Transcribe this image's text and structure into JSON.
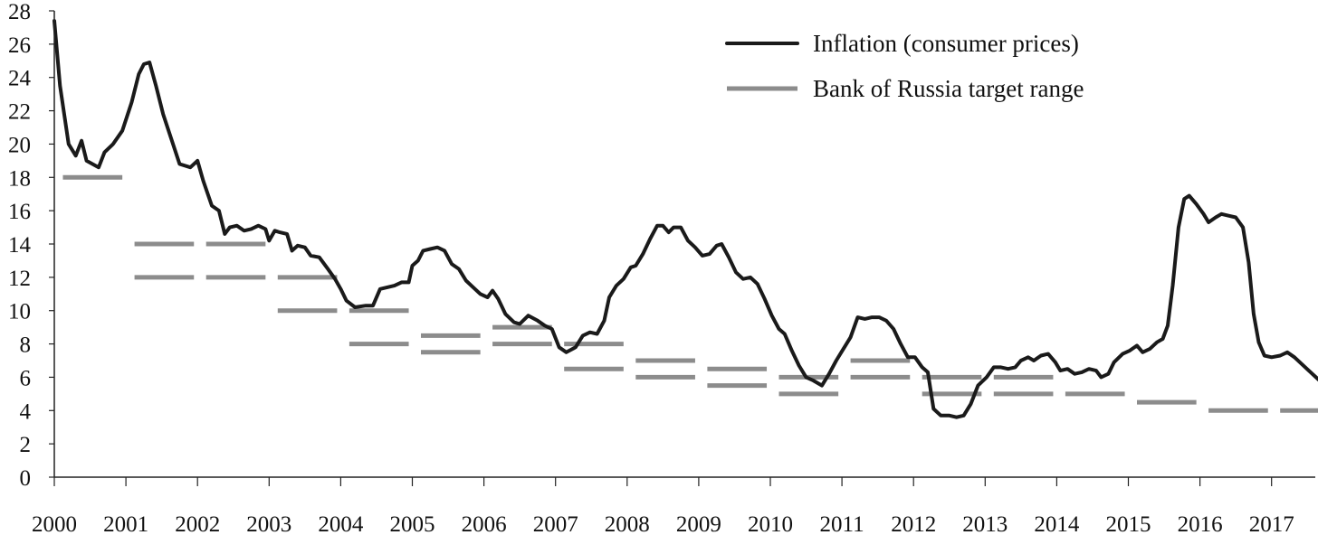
{
  "chart_data": {
    "type": "line",
    "title": "",
    "xlabel": "",
    "ylabel": "",
    "xlim": [
      2000,
      2017.75
    ],
    "ylim": [
      0,
      28
    ],
    "x_ticks": [
      2000,
      2001,
      2002,
      2003,
      2004,
      2005,
      2006,
      2007,
      2008,
      2009,
      2010,
      2011,
      2012,
      2013,
      2014,
      2015,
      2016,
      2017
    ],
    "y_ticks": [
      0,
      2,
      4,
      6,
      8,
      10,
      12,
      14,
      16,
      18,
      20,
      22,
      24,
      26,
      28
    ],
    "grid": false,
    "legend_position": "top-right",
    "colors": {
      "inflation": "#1a1a1a",
      "target": "#8c8c8c"
    },
    "series": [
      {
        "name": "Inflation (consumer prices)",
        "kind": "line",
        "points": [
          [
            2000.0,
            27.4
          ],
          [
            2000.08,
            23.5
          ],
          [
            2000.2,
            20.0
          ],
          [
            2000.3,
            19.3
          ],
          [
            2000.38,
            20.2
          ],
          [
            2000.45,
            19.0
          ],
          [
            2000.62,
            18.6
          ],
          [
            2000.7,
            19.5
          ],
          [
            2000.82,
            20.0
          ],
          [
            2000.95,
            20.8
          ],
          [
            2001.08,
            22.5
          ],
          [
            2001.18,
            24.2
          ],
          [
            2001.25,
            24.8
          ],
          [
            2001.33,
            24.9
          ],
          [
            2001.42,
            23.5
          ],
          [
            2001.52,
            21.8
          ],
          [
            2001.62,
            20.5
          ],
          [
            2001.75,
            18.8
          ],
          [
            2001.9,
            18.6
          ],
          [
            2002.0,
            19.0
          ],
          [
            2002.08,
            17.8
          ],
          [
            2002.2,
            16.3
          ],
          [
            2002.3,
            16.0
          ],
          [
            2002.38,
            14.6
          ],
          [
            2002.45,
            15.0
          ],
          [
            2002.55,
            15.1
          ],
          [
            2002.65,
            14.8
          ],
          [
            2002.75,
            14.9
          ],
          [
            2002.85,
            15.1
          ],
          [
            2002.95,
            14.9
          ],
          [
            2003.0,
            14.2
          ],
          [
            2003.08,
            14.8
          ],
          [
            2003.15,
            14.7
          ],
          [
            2003.25,
            14.6
          ],
          [
            2003.32,
            13.6
          ],
          [
            2003.4,
            13.9
          ],
          [
            2003.5,
            13.8
          ],
          [
            2003.58,
            13.3
          ],
          [
            2003.7,
            13.2
          ],
          [
            2003.82,
            12.5
          ],
          [
            2003.92,
            11.9
          ],
          [
            2004.0,
            11.3
          ],
          [
            2004.08,
            10.6
          ],
          [
            2004.2,
            10.2
          ],
          [
            2004.35,
            10.3
          ],
          [
            2004.45,
            10.3
          ],
          [
            2004.55,
            11.3
          ],
          [
            2004.65,
            11.4
          ],
          [
            2004.75,
            11.5
          ],
          [
            2004.85,
            11.7
          ],
          [
            2004.95,
            11.7
          ],
          [
            2005.0,
            12.7
          ],
          [
            2005.08,
            13.0
          ],
          [
            2005.15,
            13.6
          ],
          [
            2005.25,
            13.7
          ],
          [
            2005.35,
            13.8
          ],
          [
            2005.45,
            13.6
          ],
          [
            2005.55,
            12.8
          ],
          [
            2005.65,
            12.5
          ],
          [
            2005.75,
            11.8
          ],
          [
            2005.85,
            11.4
          ],
          [
            2005.95,
            11.0
          ],
          [
            2006.05,
            10.8
          ],
          [
            2006.12,
            11.2
          ],
          [
            2006.2,
            10.7
          ],
          [
            2006.3,
            9.8
          ],
          [
            2006.42,
            9.3
          ],
          [
            2006.5,
            9.2
          ],
          [
            2006.62,
            9.7
          ],
          [
            2006.75,
            9.4
          ],
          [
            2006.85,
            9.1
          ],
          [
            2006.95,
            8.9
          ],
          [
            2007.05,
            7.8
          ],
          [
            2007.15,
            7.5
          ],
          [
            2007.28,
            7.8
          ],
          [
            2007.38,
            8.5
          ],
          [
            2007.48,
            8.7
          ],
          [
            2007.58,
            8.6
          ],
          [
            2007.68,
            9.4
          ],
          [
            2007.75,
            10.8
          ],
          [
            2007.85,
            11.5
          ],
          [
            2007.95,
            11.9
          ],
          [
            2008.05,
            12.6
          ],
          [
            2008.12,
            12.7
          ],
          [
            2008.22,
            13.4
          ],
          [
            2008.32,
            14.3
          ],
          [
            2008.42,
            15.1
          ],
          [
            2008.5,
            15.1
          ],
          [
            2008.58,
            14.7
          ],
          [
            2008.65,
            15.0
          ],
          [
            2008.75,
            15.0
          ],
          [
            2008.85,
            14.2
          ],
          [
            2008.95,
            13.8
          ],
          [
            2009.05,
            13.3
          ],
          [
            2009.15,
            13.4
          ],
          [
            2009.25,
            13.9
          ],
          [
            2009.32,
            14.0
          ],
          [
            2009.42,
            13.2
          ],
          [
            2009.52,
            12.3
          ],
          [
            2009.62,
            11.9
          ],
          [
            2009.72,
            12.0
          ],
          [
            2009.82,
            11.6
          ],
          [
            2009.92,
            10.7
          ],
          [
            2010.02,
            9.7
          ],
          [
            2010.12,
            8.9
          ],
          [
            2010.2,
            8.6
          ],
          [
            2010.3,
            7.6
          ],
          [
            2010.4,
            6.7
          ],
          [
            2010.5,
            6.0
          ],
          [
            2010.6,
            5.8
          ],
          [
            2010.72,
            5.5
          ],
          [
            2010.82,
            6.2
          ],
          [
            2010.92,
            7.0
          ],
          [
            2011.02,
            7.7
          ],
          [
            2011.12,
            8.4
          ],
          [
            2011.22,
            9.6
          ],
          [
            2011.32,
            9.5
          ],
          [
            2011.42,
            9.6
          ],
          [
            2011.52,
            9.6
          ],
          [
            2011.62,
            9.4
          ],
          [
            2011.72,
            8.9
          ],
          [
            2011.82,
            8.0
          ],
          [
            2011.92,
            7.2
          ],
          [
            2012.02,
            7.2
          ],
          [
            2012.12,
            6.6
          ],
          [
            2012.2,
            6.3
          ],
          [
            2012.28,
            4.1
          ],
          [
            2012.38,
            3.7
          ],
          [
            2012.5,
            3.7
          ],
          [
            2012.6,
            3.6
          ],
          [
            2012.7,
            3.7
          ],
          [
            2012.8,
            4.4
          ],
          [
            2012.9,
            5.5
          ],
          [
            2013.02,
            6.0
          ],
          [
            2013.12,
            6.6
          ],
          [
            2013.22,
            6.6
          ],
          [
            2013.32,
            6.5
          ],
          [
            2013.42,
            6.6
          ],
          [
            2013.5,
            7.0
          ],
          [
            2013.6,
            7.2
          ],
          [
            2013.68,
            7.0
          ],
          [
            2013.78,
            7.3
          ],
          [
            2013.88,
            7.4
          ],
          [
            2013.98,
            6.9
          ],
          [
            2014.05,
            6.4
          ],
          [
            2014.15,
            6.5
          ],
          [
            2014.25,
            6.2
          ],
          [
            2014.35,
            6.3
          ],
          [
            2014.45,
            6.5
          ],
          [
            2014.55,
            6.4
          ],
          [
            2014.62,
            6.0
          ],
          [
            2014.72,
            6.2
          ],
          [
            2014.8,
            6.9
          ],
          [
            2014.92,
            7.4
          ],
          [
            2015.02,
            7.6
          ],
          [
            2015.12,
            7.9
          ],
          [
            2015.2,
            7.5
          ],
          [
            2015.3,
            7.7
          ],
          [
            2015.4,
            8.1
          ],
          [
            2015.48,
            8.3
          ],
          [
            2015.55,
            9.1
          ],
          [
            2015.62,
            11.5
          ],
          [
            2015.7,
            15.0
          ],
          [
            2015.78,
            16.7
          ],
          [
            2015.85,
            16.9
          ],
          [
            2015.95,
            16.4
          ],
          [
            2016.05,
            15.8
          ],
          [
            2016.12,
            15.3
          ],
          [
            2016.22,
            15.6
          ],
          [
            2016.3,
            15.8
          ],
          [
            2016.4,
            15.7
          ],
          [
            2016.5,
            15.6
          ],
          [
            2016.6,
            15.0
          ],
          [
            2016.68,
            12.9
          ],
          [
            2016.75,
            9.8
          ],
          [
            2016.82,
            8.1
          ],
          [
            2016.9,
            7.3
          ],
          [
            2017.0,
            7.2
          ],
          [
            2017.12,
            7.3
          ],
          [
            2017.22,
            7.5
          ],
          [
            2017.32,
            7.2
          ],
          [
            2017.42,
            6.8
          ],
          [
            2017.52,
            6.4
          ],
          [
            2017.62,
            6.0
          ],
          [
            2017.72,
            5.6
          ],
          [
            2017.82,
            5.2
          ],
          [
            2017.92,
            4.7
          ],
          [
            2018.02,
            4.3
          ],
          [
            2018.1,
            4.1
          ],
          [
            2018.2,
            4.1
          ],
          [
            2018.28,
            4.3
          ],
          [
            2018.35,
            3.9
          ],
          [
            2018.45,
            3.3
          ],
          [
            2018.52,
            3.0
          ]
        ]
      },
      {
        "name": "Bank of Russia target range",
        "kind": "segments",
        "segments": [
          {
            "x0": 2000.12,
            "x1": 2000.95,
            "y": 18
          },
          {
            "x0": 2001.12,
            "x1": 2001.95,
            "y": 14
          },
          {
            "x0": 2001.12,
            "x1": 2001.95,
            "y": 12
          },
          {
            "x0": 2002.12,
            "x1": 2002.95,
            "y": 14
          },
          {
            "x0": 2002.12,
            "x1": 2002.95,
            "y": 12
          },
          {
            "x0": 2003.12,
            "x1": 2003.95,
            "y": 12
          },
          {
            "x0": 2003.12,
            "x1": 2003.95,
            "y": 10
          },
          {
            "x0": 2004.12,
            "x1": 2004.95,
            "y": 10
          },
          {
            "x0": 2004.12,
            "x1": 2004.95,
            "y": 8
          },
          {
            "x0": 2005.12,
            "x1": 2005.95,
            "y": 8.5
          },
          {
            "x0": 2005.12,
            "x1": 2005.95,
            "y": 7.5
          },
          {
            "x0": 2006.12,
            "x1": 2006.95,
            "y": 9
          },
          {
            "x0": 2006.12,
            "x1": 2006.95,
            "y": 8
          },
          {
            "x0": 2007.12,
            "x1": 2007.95,
            "y": 8
          },
          {
            "x0": 2007.12,
            "x1": 2007.95,
            "y": 6.5
          },
          {
            "x0": 2008.12,
            "x1": 2008.95,
            "y": 7
          },
          {
            "x0": 2008.12,
            "x1": 2008.95,
            "y": 6
          },
          {
            "x0": 2009.12,
            "x1": 2009.95,
            "y": 6.5
          },
          {
            "x0": 2009.12,
            "x1": 2009.95,
            "y": 5.5
          },
          {
            "x0": 2010.12,
            "x1": 2010.95,
            "y": 6
          },
          {
            "x0": 2010.12,
            "x1": 2010.95,
            "y": 5
          },
          {
            "x0": 2011.12,
            "x1": 2011.95,
            "y": 7
          },
          {
            "x0": 2011.12,
            "x1": 2011.95,
            "y": 6
          },
          {
            "x0": 2012.12,
            "x1": 2012.95,
            "y": 6
          },
          {
            "x0": 2012.12,
            "x1": 2012.95,
            "y": 5
          },
          {
            "x0": 2013.12,
            "x1": 2013.95,
            "y": 6
          },
          {
            "x0": 2013.12,
            "x1": 2013.95,
            "y": 5
          },
          {
            "x0": 2014.12,
            "x1": 2014.95,
            "y": 5
          },
          {
            "x0": 2015.12,
            "x1": 2015.95,
            "y": 4.5
          },
          {
            "x0": 2016.12,
            "x1": 2016.95,
            "y": 4
          },
          {
            "x0": 2017.12,
            "x1": 2017.95,
            "y": 4
          }
        ]
      }
    ]
  }
}
